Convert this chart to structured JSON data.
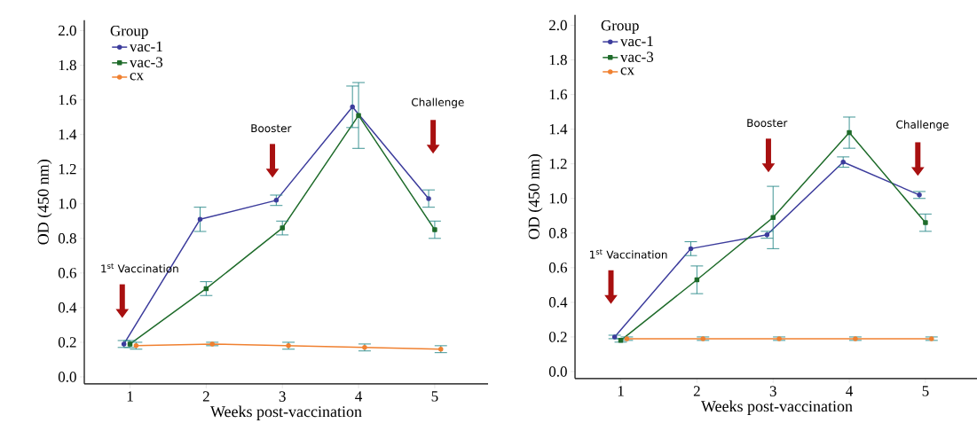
{
  "chart_data": [
    {
      "type": "line",
      "xlabel": "Weeks post-vaccination",
      "ylabel": "OD (450 nm)",
      "legend_title": "Group",
      "legend": "top left",
      "xlim": [
        0.4,
        5.7
      ],
      "ylim": [
        -0.04,
        2.06
      ],
      "xticks": [
        1,
        2,
        3,
        4,
        5
      ],
      "yticks": [
        {
          "value": 0,
          "label": "0.0"
        },
        {
          "value": 0.2,
          "label": "0.2"
        },
        {
          "value": 0.4,
          "label": "0.4"
        },
        {
          "value": 0.6,
          "label": "0.6"
        },
        {
          "value": 0.8,
          "label": "0.8"
        },
        {
          "value": 1.0,
          "label": "1.0"
        },
        {
          "value": 1.2,
          "label": "1.2"
        },
        {
          "value": 1.4,
          "label": "1.4"
        },
        {
          "value": 1.6,
          "label": "1.6"
        },
        {
          "value": 1.8,
          "label": "1.8"
        },
        {
          "value": 2.0,
          "label": "2.0"
        }
      ],
      "series": [
        {
          "name": "vac-1",
          "color": "#3c3c9c",
          "marker": "circle",
          "x": [
            0.92,
            1.92,
            2.92,
            3.92,
            4.92
          ],
          "values": [
            0.19,
            0.91,
            1.02,
            1.56,
            1.03
          ],
          "errors": [
            0.02,
            0.07,
            0.03,
            0.12,
            0.05
          ]
        },
        {
          "name": "vac-3",
          "color": "#1e6b2a",
          "marker": "square",
          "x": [
            1,
            2,
            3,
            4,
            5
          ],
          "values": [
            0.19,
            0.51,
            0.86,
            1.51,
            0.85
          ],
          "errors": [
            0.02,
            0.04,
            0.04,
            0.19,
            0.05
          ]
        },
        {
          "name": "cx",
          "color": "#f08030",
          "marker": "circle",
          "x": [
            1.08,
            2.08,
            3.08,
            4.08,
            5.08
          ],
          "values": [
            0.18,
            0.19,
            0.18,
            0.17,
            0.16
          ],
          "errors": [
            0.02,
            0.01,
            0.02,
            0.02,
            0.02
          ]
        }
      ],
      "annotations": [
        "1$^{st}$ Vaccination",
        "Booster",
        "Challenge"
      ]
    },
    {
      "type": "line",
      "xlabel": "Weeks post-vaccination",
      "ylabel": "OD (450 nm)",
      "legend_title": "Group",
      "legend": "top left",
      "xlim": [
        0.4,
        5.7
      ],
      "ylim": [
        -0.04,
        2.06
      ],
      "xticks": [
        1,
        2,
        3,
        4,
        5
      ],
      "yticks": [
        {
          "value": 0,
          "label": "0.0"
        },
        {
          "value": 0.2,
          "label": "0.2"
        },
        {
          "value": 0.4,
          "label": "0.4"
        },
        {
          "value": 0.6,
          "label": "0.6"
        },
        {
          "value": 0.8,
          "label": "0.8"
        },
        {
          "value": 1.0,
          "label": "1.0"
        },
        {
          "value": 1.2,
          "label": "1.2"
        },
        {
          "value": 1.4,
          "label": "1.4"
        },
        {
          "value": 1.6,
          "label": "1.6"
        },
        {
          "value": 1.8,
          "label": "1.8"
        },
        {
          "value": 2.0,
          "label": "2.0"
        }
      ],
      "series": [
        {
          "name": "vac-1",
          "color": "#3c3c9c",
          "marker": "circle",
          "x": [
            0.92,
            1.92,
            2.92,
            3.92,
            4.92
          ],
          "values": [
            0.2,
            0.71,
            0.79,
            1.21,
            1.02
          ],
          "errors": [
            0.01,
            0.04,
            0.02,
            0.03,
            0.02
          ]
        },
        {
          "name": "vac-3",
          "color": "#1e6b2a",
          "marker": "square",
          "x": [
            1,
            2,
            3,
            4,
            5
          ],
          "values": [
            0.18,
            0.53,
            0.89,
            1.38,
            0.86
          ],
          "errors": [
            0.01,
            0.08,
            0.18,
            0.09,
            0.05
          ]
        },
        {
          "name": "cx",
          "color": "#f08030",
          "marker": "circle",
          "x": [
            1.08,
            2.08,
            3.08,
            4.08,
            5.08
          ],
          "values": [
            0.19,
            0.19,
            0.19,
            0.19,
            0.19
          ],
          "errors": [
            0.01,
            0.01,
            0.01,
            0.01,
            0.01
          ]
        }
      ],
      "annotations": [
        "1$^{st}$ Vaccination",
        "Booster",
        "Challenge"
      ]
    }
  ]
}
